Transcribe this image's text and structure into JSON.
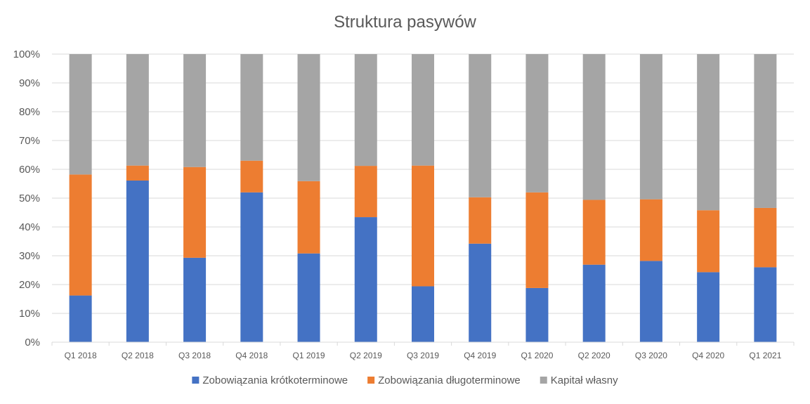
{
  "chart_data": {
    "type": "bar",
    "stacked": true,
    "title": "Struktura pasywów",
    "xlabel": "",
    "ylabel": "",
    "ylim": [
      0,
      100
    ],
    "y_ticks": [
      "0%",
      "10%",
      "20%",
      "30%",
      "40%",
      "50%",
      "60%",
      "70%",
      "80%",
      "90%",
      "100%"
    ],
    "grid": true,
    "legend_position": "bottom",
    "categories": [
      "Q1 2018",
      "Q2 2018",
      "Q3 2018",
      "Q4 2018",
      "Q1 2019",
      "Q2 2019",
      "Q3 2019",
      "Q4 2019",
      "Q1 2020",
      "Q2 2020",
      "Q3 2020",
      "Q4 2020",
      "Q1 2021"
    ],
    "series": [
      {
        "name": "Zobowiązania krótkoterminowe",
        "color": "#4472C4",
        "values": [
          16.2,
          56.1,
          29.3,
          52.0,
          30.8,
          43.4,
          19.4,
          34.2,
          18.8,
          26.9,
          28.2,
          24.3,
          26.0
        ]
      },
      {
        "name": "Zobowiązania długoterminowe",
        "color": "#ED7D31",
        "values": [
          42.0,
          5.2,
          31.5,
          11.0,
          25.1,
          17.8,
          41.9,
          16.1,
          33.2,
          22.5,
          21.4,
          21.5,
          20.6
        ]
      },
      {
        "name": "Kapitał własny",
        "color": "#A5A5A5",
        "values": [
          41.8,
          38.7,
          39.2,
          37.0,
          44.1,
          38.8,
          38.7,
          49.7,
          48.0,
          50.6,
          50.4,
          54.2,
          53.4
        ]
      }
    ]
  }
}
